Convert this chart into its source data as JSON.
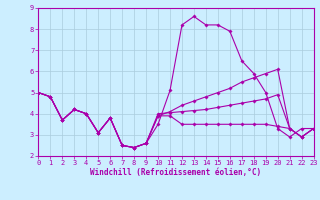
{
  "xlabel": "Windchill (Refroidissement éolien,°C)",
  "background_color": "#cceeff",
  "line_color": "#aa00aa",
  "grid_color": "#aaccdd",
  "x_hours": [
    0,
    1,
    2,
    3,
    4,
    5,
    6,
    7,
    8,
    9,
    10,
    11,
    12,
    13,
    14,
    15,
    16,
    17,
    18,
    19,
    20,
    21,
    22,
    23
  ],
  "line1": [
    5.0,
    4.8,
    3.7,
    4.2,
    4.0,
    3.1,
    3.8,
    2.5,
    2.4,
    2.6,
    3.5,
    5.1,
    8.2,
    8.6,
    8.2,
    8.2,
    7.9,
    6.5,
    5.9,
    5.0,
    3.3,
    2.9,
    3.3,
    3.3
  ],
  "line2": [
    5.0,
    4.8,
    3.7,
    4.2,
    4.0,
    3.1,
    3.8,
    2.5,
    2.4,
    2.6,
    4.0,
    4.05,
    4.1,
    4.15,
    4.2,
    4.3,
    4.4,
    4.5,
    4.6,
    4.7,
    4.9,
    3.3,
    2.9,
    3.3
  ],
  "line3": [
    5.0,
    4.8,
    3.7,
    4.2,
    4.0,
    3.1,
    3.8,
    2.5,
    2.4,
    2.6,
    3.9,
    3.9,
    3.5,
    3.5,
    3.5,
    3.5,
    3.5,
    3.5,
    3.5,
    3.5,
    3.4,
    3.3,
    2.9,
    3.3
  ],
  "line4": [
    5.0,
    4.8,
    3.7,
    4.2,
    4.0,
    3.1,
    3.8,
    2.5,
    2.4,
    2.6,
    3.9,
    4.1,
    4.4,
    4.6,
    4.8,
    5.0,
    5.2,
    5.5,
    5.7,
    5.9,
    6.1,
    3.3,
    2.9,
    3.3
  ],
  "ylim": [
    2,
    9
  ],
  "xlim": [
    0,
    23
  ],
  "yticks": [
    2,
    3,
    4,
    5,
    6,
    7,
    8,
    9
  ],
  "xticks": [
    0,
    1,
    2,
    3,
    4,
    5,
    6,
    7,
    8,
    9,
    10,
    11,
    12,
    13,
    14,
    15,
    16,
    17,
    18,
    19,
    20,
    21,
    22,
    23
  ],
  "marker": "D",
  "markersize": 1.8,
  "linewidth": 0.8,
  "tick_fontsize": 5,
  "xlabel_fontsize": 5.5
}
